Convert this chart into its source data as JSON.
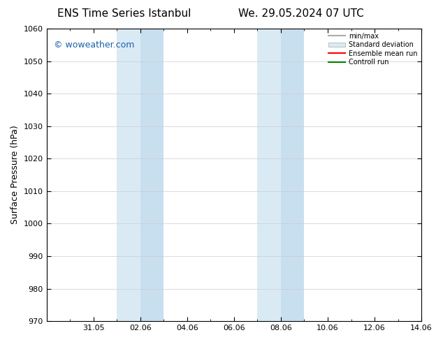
{
  "title_left": "ENS Time Series Istanbul",
  "title_right": "We. 29.05.2024 07 UTC",
  "ylabel": "Surface Pressure (hPa)",
  "ylim": [
    970,
    1060
  ],
  "yticks": [
    970,
    980,
    990,
    1000,
    1010,
    1020,
    1030,
    1040,
    1050,
    1060
  ],
  "xtick_labels": [
    "31.05",
    "02.06",
    "04.06",
    "06.06",
    "08.06",
    "10.06",
    "12.06",
    "14.06"
  ],
  "xtick_positions": [
    2,
    4,
    6,
    8,
    10,
    12,
    14,
    16
  ],
  "xlim": [
    0,
    16
  ],
  "shade_bands": [
    {
      "x_start": 3.0,
      "x_end": 4.0,
      "color": "#daeaf5"
    },
    {
      "x_start": 4.0,
      "x_end": 5.0,
      "color": "#c8dff0"
    },
    {
      "x_start": 9.0,
      "x_end": 10.0,
      "color": "#daeaf5"
    },
    {
      "x_start": 10.0,
      "x_end": 11.0,
      "color": "#c8dff0"
    }
  ],
  "watermark_text": "© woweather.com",
  "watermark_color": "#1a5fa8",
  "background_color": "#ffffff",
  "legend_items": [
    {
      "label": "min/max",
      "type": "line",
      "color": "#aaaaaa",
      "lw": 1.5
    },
    {
      "label": "Standard deviation",
      "type": "patch",
      "color": "#d8eaf5",
      "edgecolor": "#aaaaaa"
    },
    {
      "label": "Ensemble mean run",
      "type": "line",
      "color": "#ff0000",
      "lw": 1.5
    },
    {
      "label": "Controll run",
      "type": "line",
      "color": "#008000",
      "lw": 1.5
    }
  ],
  "grid_color": "#cccccc",
  "title_fontsize": 11,
  "axis_label_fontsize": 9,
  "tick_fontsize": 8,
  "watermark_fontsize": 9
}
